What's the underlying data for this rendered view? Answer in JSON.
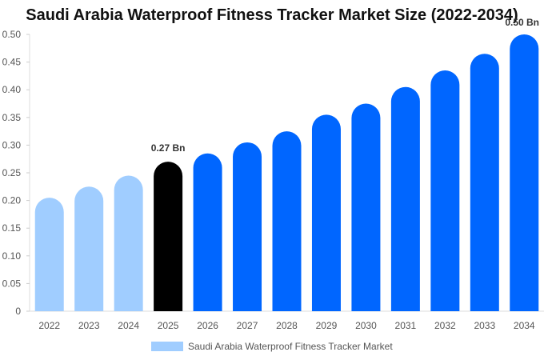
{
  "chart_data": {
    "type": "bar",
    "title": "Saudi Arabia Waterproof Fitness Tracker Market Size (2022-2034)",
    "categories": [
      "2022",
      "2023",
      "2024",
      "2025",
      "2026",
      "2027",
      "2028",
      "2029",
      "2030",
      "2031",
      "2032",
      "2033",
      "2034"
    ],
    "series": [
      {
        "name": "Saudi Arabia Waterproof Fitness Tracker Market",
        "values": [
          0.205,
          0.225,
          0.245,
          0.27,
          0.285,
          0.305,
          0.325,
          0.355,
          0.375,
          0.405,
          0.435,
          0.465,
          0.5
        ]
      }
    ],
    "ylim": [
      0,
      0.5
    ],
    "yticks": [
      "0",
      "0.05",
      "0.10",
      "0.15",
      "0.20",
      "0.25",
      "0.30",
      "0.35",
      "0.40",
      "0.45",
      "0.50"
    ],
    "data_labels": [
      {
        "category": "2025",
        "text": "0.27 Bn"
      },
      {
        "category": "2034",
        "text": "0.50 Bn"
      }
    ],
    "colors": {
      "historical": "#a0cdff",
      "highlight": "#000000",
      "forecast": "#0066ff"
    },
    "grid": false,
    "legend_position": "bottom"
  }
}
